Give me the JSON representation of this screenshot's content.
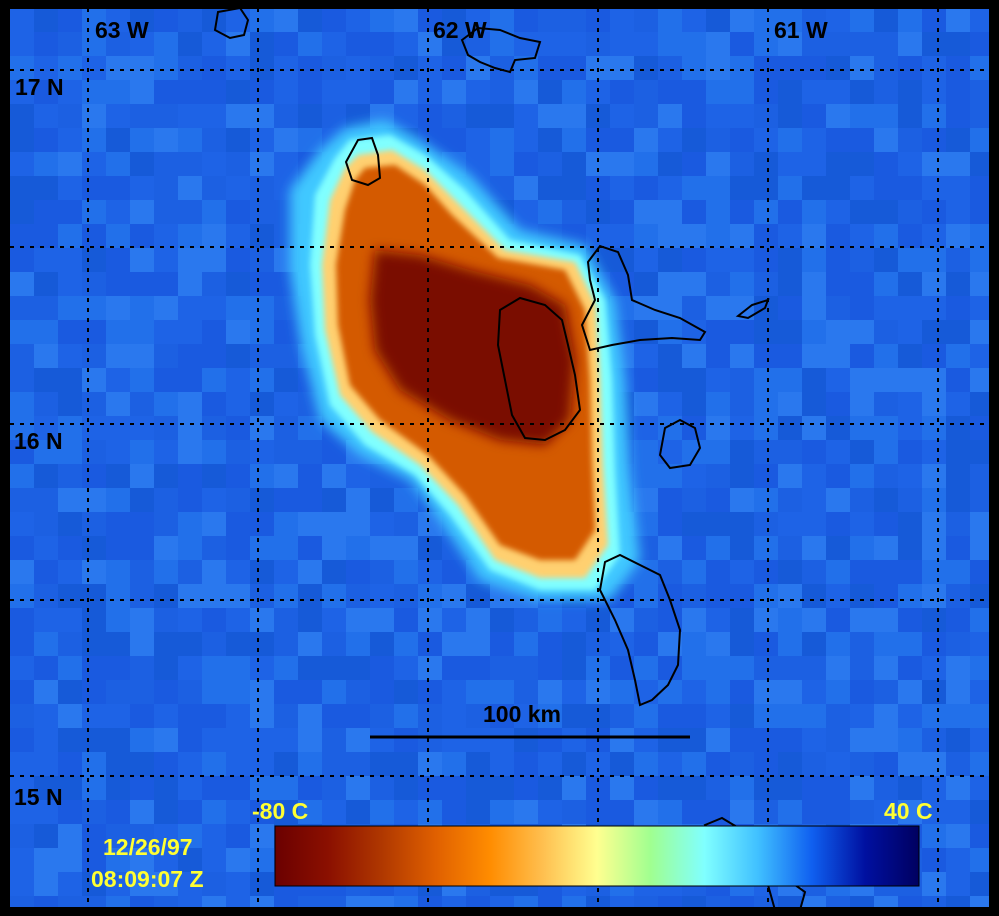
{
  "map": {
    "longitude_labels": [
      "63 W",
      "62 W",
      "61 W"
    ],
    "latitude_labels": [
      "17 N",
      "16 N",
      "15 N"
    ],
    "scale_bar": {
      "label": "100 km"
    },
    "colorbar": {
      "min_label": "-80 C",
      "max_label": "40 C",
      "colors": [
        "#6b0000",
        "#8b1000",
        "#b03800",
        "#e06000",
        "#ff8c00",
        "#ffc050",
        "#ffff90",
        "#a0ff90",
        "#80ffff",
        "#40c0ff",
        "#1060f0",
        "#0010a0",
        "#000060"
      ]
    },
    "timestamp": {
      "date": "12/26/97",
      "time": "08:09:07 Z"
    },
    "colors": {
      "background": "#1e63e6",
      "frame": "#000000",
      "gridline": "#000000",
      "label_black": "#000000",
      "label_yellow": "#ffff33",
      "storm_core": "#7a0800",
      "storm_mid": "#d45a00",
      "storm_edge": "#ffd070",
      "storm_halo": "#80ffff"
    }
  }
}
